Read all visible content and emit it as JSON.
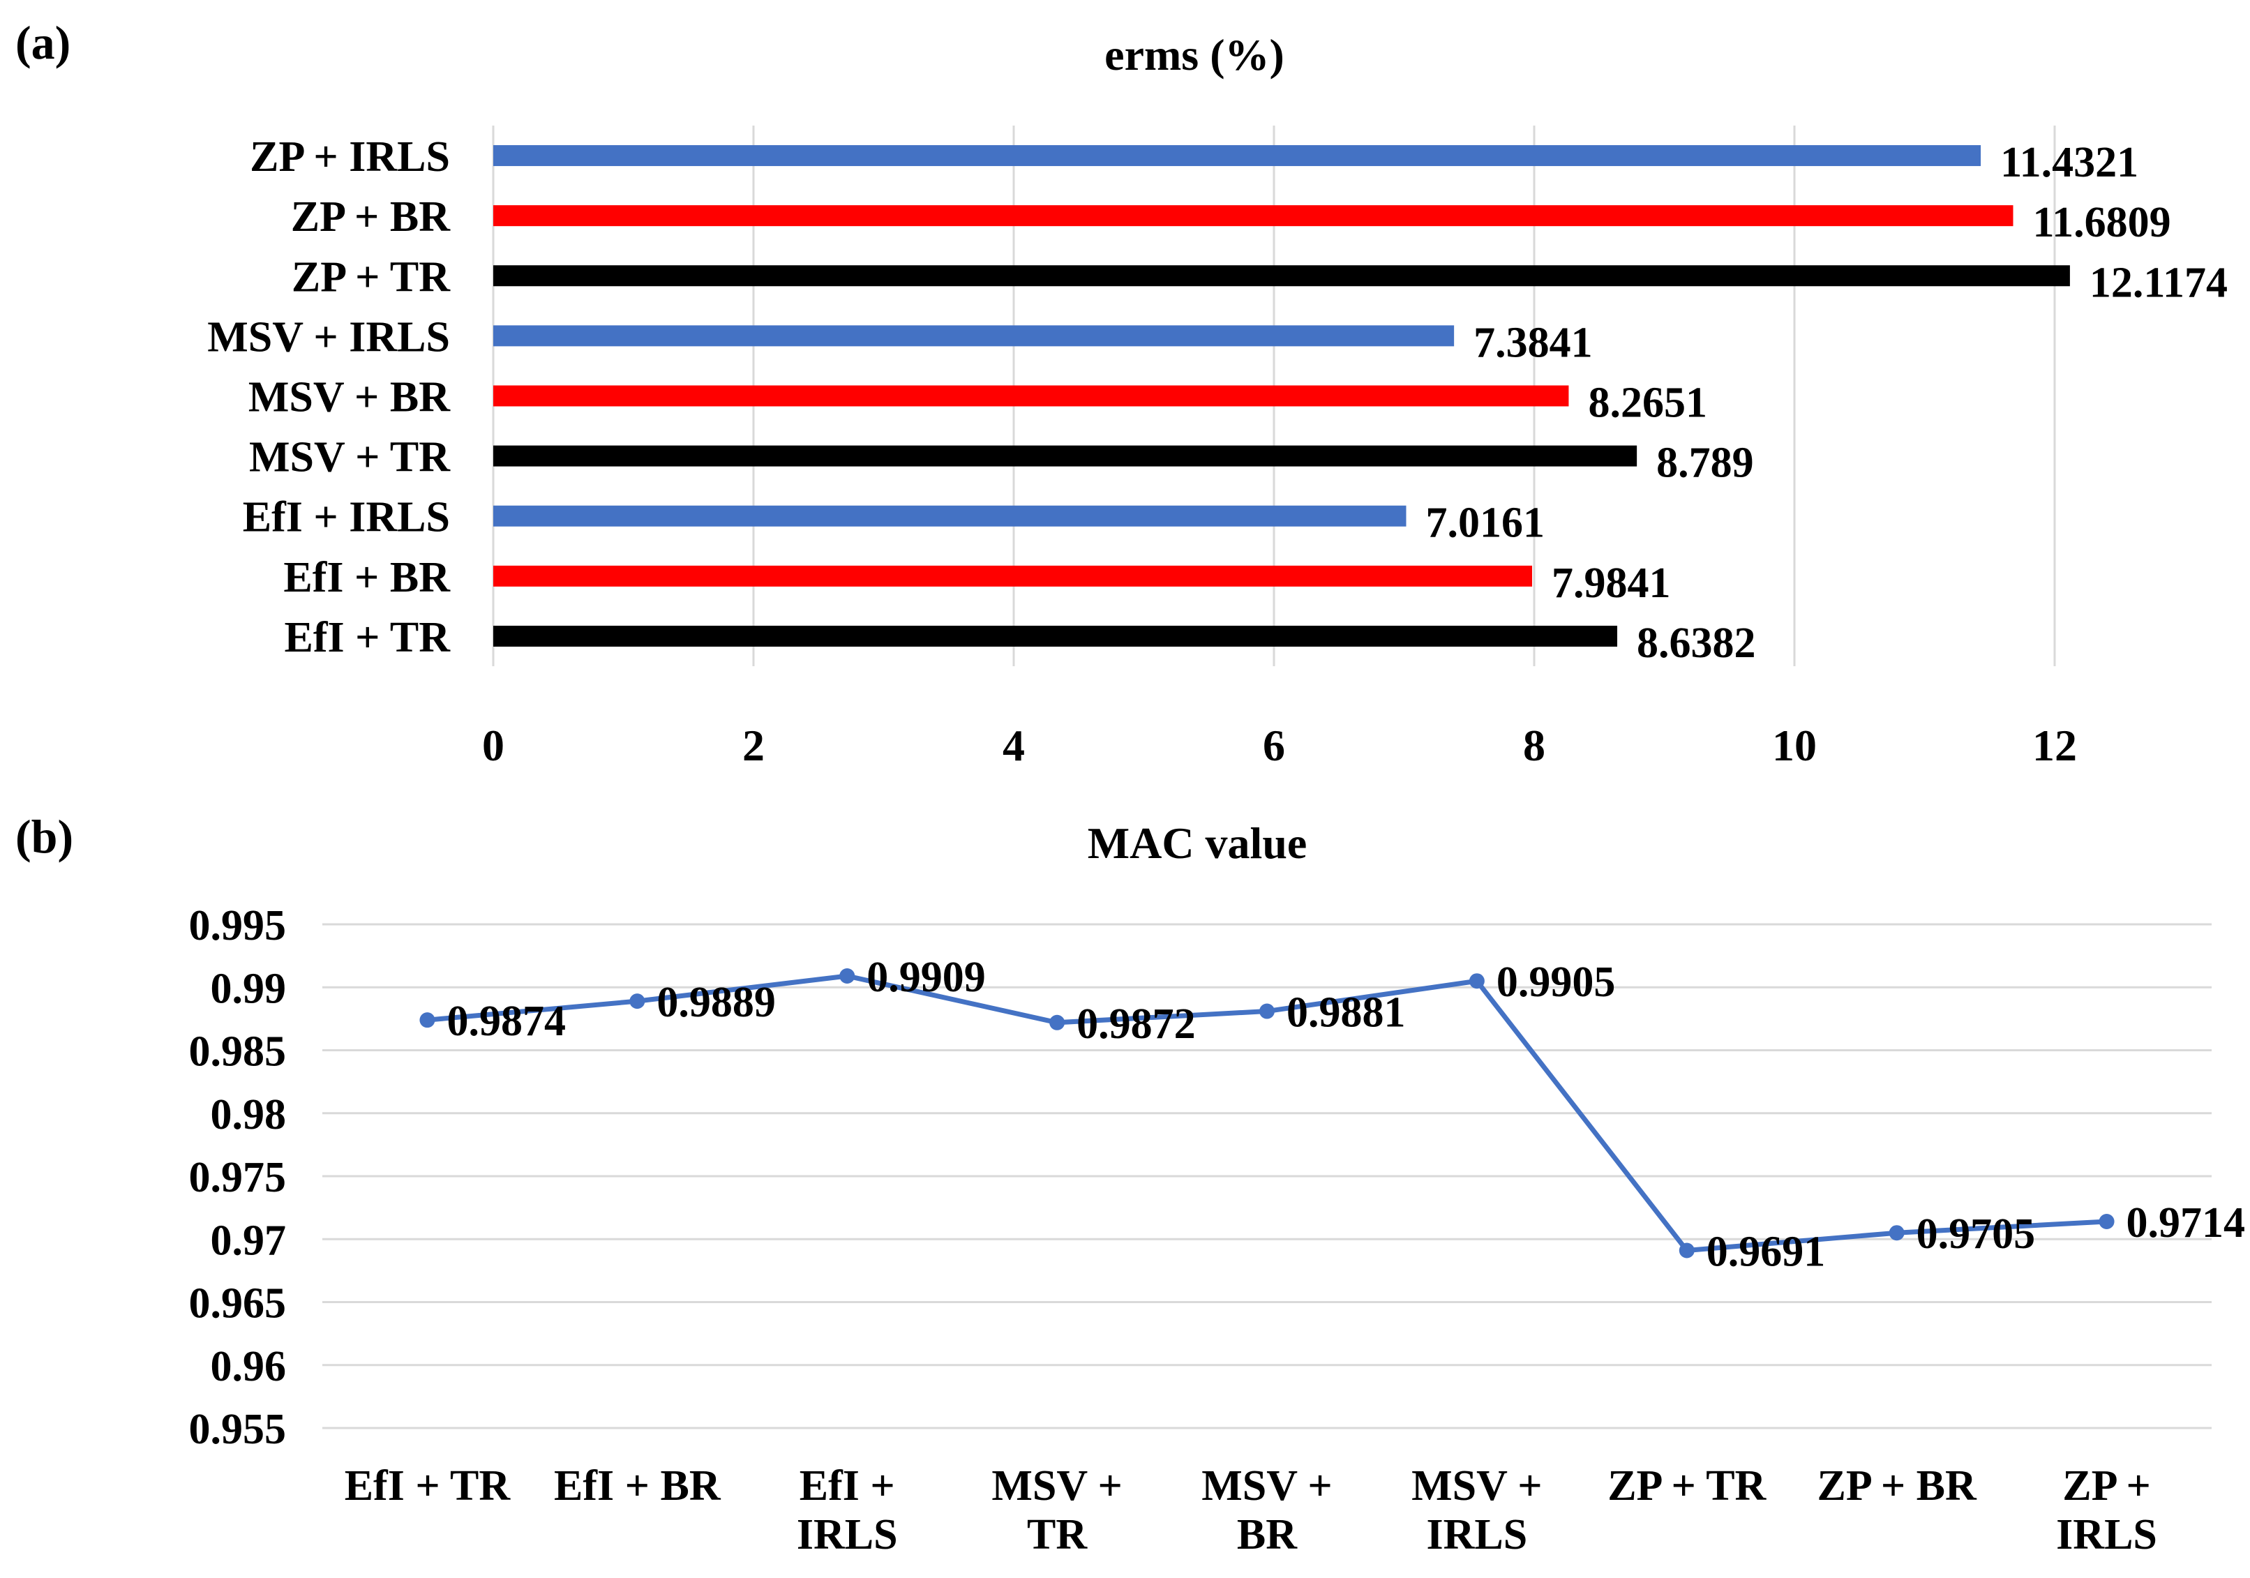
{
  "panels": {
    "a": "(a)",
    "b": "(b)"
  },
  "chart_data": [
    {
      "type": "bar",
      "orientation": "horizontal",
      "title": "erms (%)",
      "categories": [
        "ZP + IRLS",
        "ZP + BR",
        "ZP + TR",
        "MSV + IRLS",
        "MSV + BR",
        "MSV + TR",
        "EfI + IRLS",
        "EfI + BR",
        "EfI + TR"
      ],
      "values": [
        11.4321,
        11.6809,
        12.1174,
        7.3841,
        8.2651,
        8.789,
        7.0161,
        7.9841,
        8.6382
      ],
      "value_labels": [
        "11.4321",
        "11.6809",
        "12.1174",
        "7.3841",
        "8.2651",
        "8.789",
        "7.0161",
        "7.9841",
        "8.6382"
      ],
      "bar_colors": [
        "#4472C4",
        "#FF0000",
        "#000000",
        "#4472C4",
        "#FF0000",
        "#000000",
        "#4472C4",
        "#FF0000",
        "#000000"
      ],
      "xlim": [
        0,
        12
      ],
      "xticks": [
        "0",
        "2",
        "4",
        "6",
        "8",
        "10",
        "12"
      ],
      "xlabel": "",
      "ylabel": "",
      "grid": "vertical",
      "legend": "none"
    },
    {
      "type": "line",
      "title": "MAC value",
      "categories": [
        [
          "EfI + TR"
        ],
        [
          "EfI + BR"
        ],
        [
          "EfI +",
          "IRLS"
        ],
        [
          "MSV +",
          "TR"
        ],
        [
          "MSV +",
          "BR"
        ],
        [
          "MSV +",
          "IRLS"
        ],
        [
          "ZP + TR"
        ],
        [
          "ZP + BR"
        ],
        [
          "ZP +",
          "IRLS"
        ]
      ],
      "values": [
        0.9874,
        0.9889,
        0.9909,
        0.9872,
        0.9881,
        0.9905,
        0.9691,
        0.9705,
        0.9714
      ],
      "value_labels": [
        "0.9874",
        "0.9889",
        "0.9909",
        "0.9872",
        "0.9881",
        "0.9905",
        "0.9691",
        "0.9705",
        "0.9714"
      ],
      "line_color": "#4472C4",
      "ylim": [
        0.955,
        0.995
      ],
      "yticks": [
        "0.995",
        "0.99",
        "0.985",
        "0.98",
        "0.975",
        "0.97",
        "0.965",
        "0.96",
        "0.955"
      ],
      "xlabel": "",
      "ylabel": "",
      "grid": "horizontal",
      "legend": "none"
    }
  ]
}
